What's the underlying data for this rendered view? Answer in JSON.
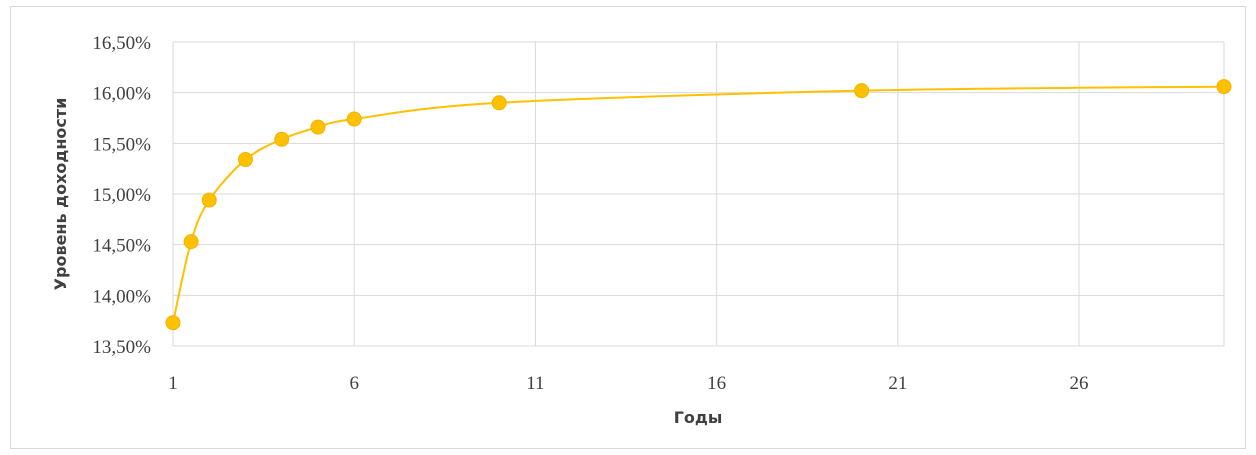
{
  "chart_data": {
    "type": "line",
    "title": "",
    "xlabel": "Годы",
    "ylabel": "Уровень доходности",
    "xlim": [
      1,
      30
    ],
    "ylim": [
      13.5,
      16.5
    ],
    "x_ticks": [
      1,
      6,
      11,
      16,
      21,
      26
    ],
    "x_tick_labels": [
      "1",
      "6",
      "11",
      "16",
      "21",
      "26"
    ],
    "y_ticks": [
      13.5,
      14.0,
      14.5,
      15.0,
      15.5,
      16.0,
      16.5
    ],
    "y_tick_labels": [
      "13,50%",
      "14,00%",
      "14,50%",
      "15,00%",
      "15,50%",
      "16,00%",
      "16,50%"
    ],
    "grid": true,
    "smooth": true,
    "series_color": "#FFC000",
    "series": [
      {
        "x": [
          1,
          1.5,
          2,
          3,
          4,
          5,
          6,
          10,
          20,
          30
        ],
        "y": [
          13.73,
          14.53,
          14.94,
          15.34,
          15.54,
          15.66,
          15.74,
          15.9,
          16.02,
          16.06
        ]
      }
    ]
  }
}
